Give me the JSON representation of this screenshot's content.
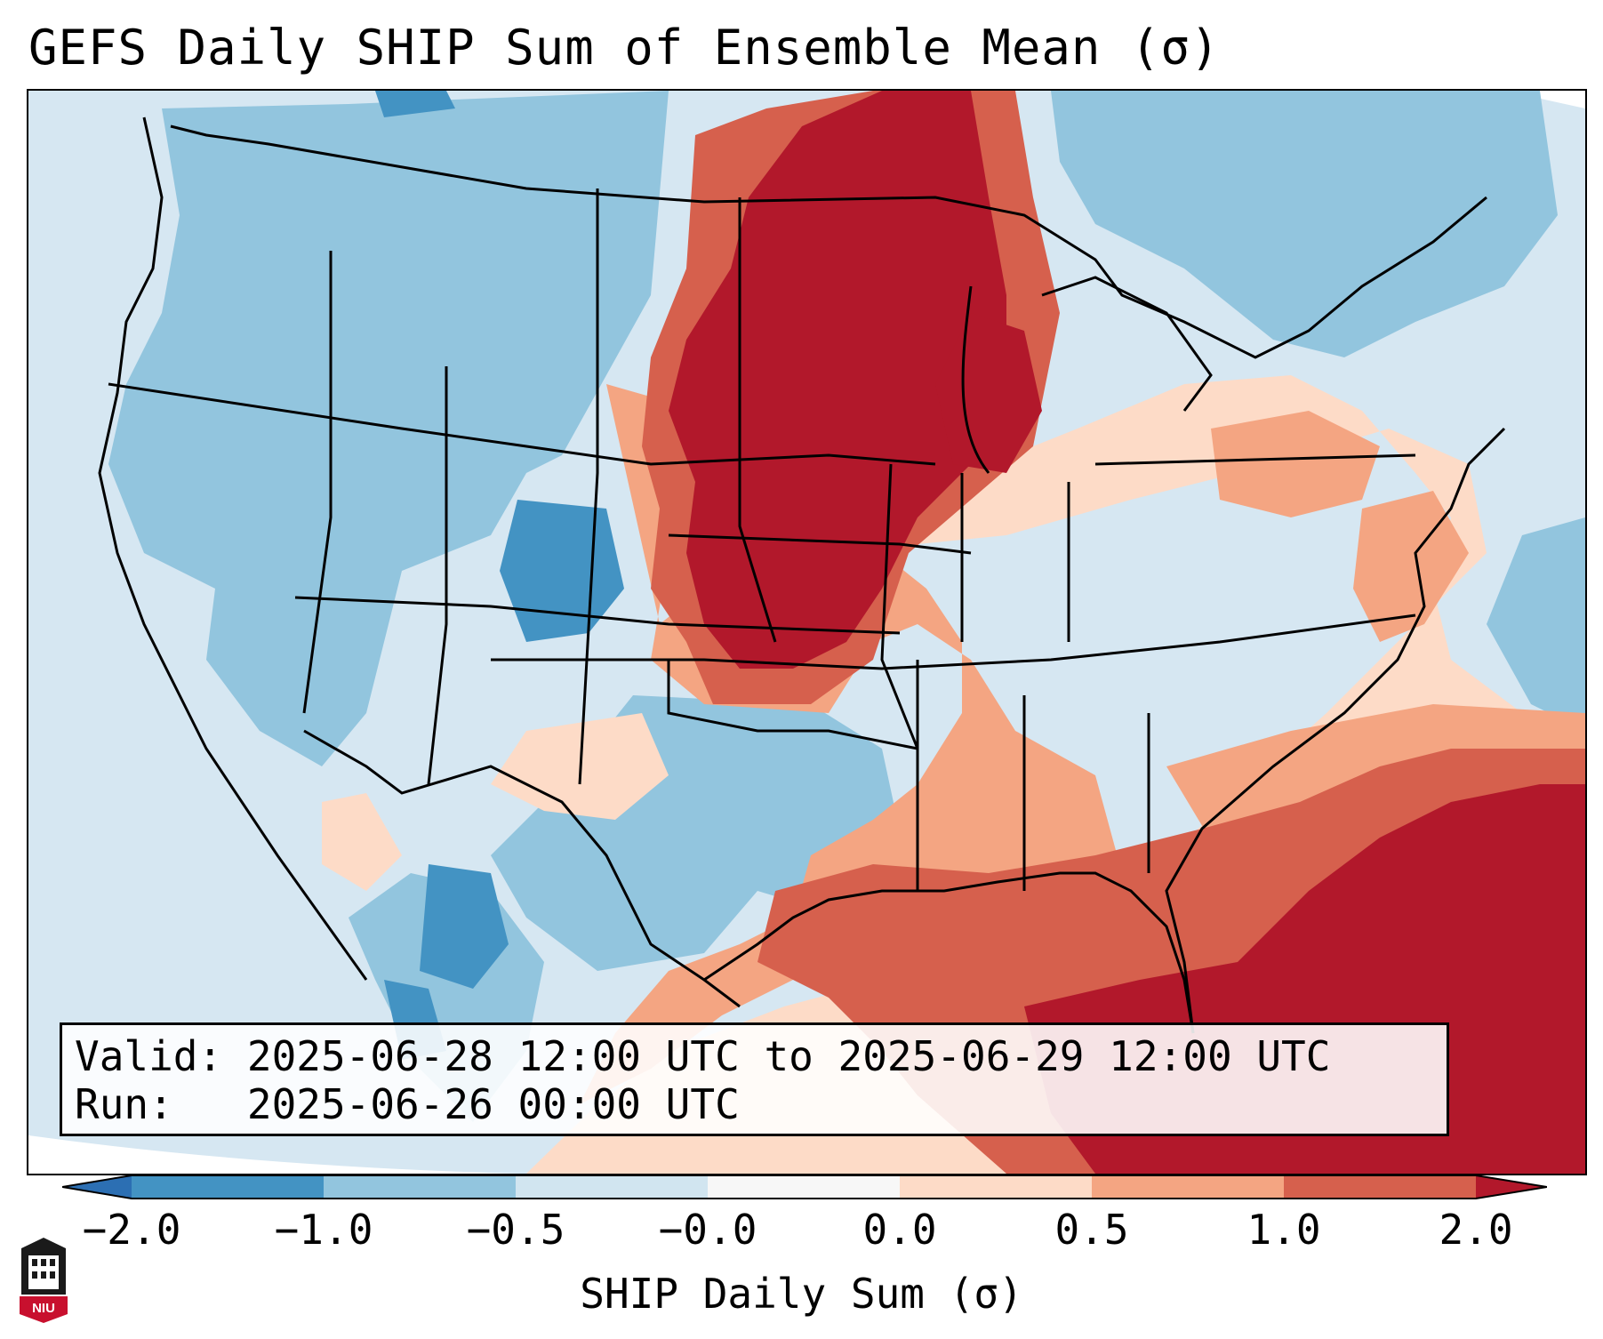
{
  "title": "GEFS Daily SHIP Sum of Ensemble Mean (σ)",
  "info": {
    "valid_label": "Valid:",
    "valid_value": "2025-06-28 12:00 UTC to 2025-06-29 12:00 UTC",
    "run_label": "Run:",
    "run_value": "2025-06-26 00:00 UTC"
  },
  "colorbar": {
    "label": "SHIP Daily Sum (σ)",
    "ticks": [
      "−2.0",
      "−1.0",
      "−0.5",
      "−0.0",
      "0.0",
      "0.5",
      "1.0",
      "2.0"
    ],
    "bins": [
      {
        "range": "< -2.0",
        "color": "#2c6fb3"
      },
      {
        "range": "-2.0 to -1.0",
        "color": "#4393c3"
      },
      {
        "range": "-1.0 to -0.5",
        "color": "#92c5de"
      },
      {
        "range": "-0.5 to -0.0",
        "color": "#d1e5f0"
      },
      {
        "range": "-0.0 to 0.0",
        "color": "#f7f7f7"
      },
      {
        "range": "0.0 to 0.5",
        "color": "#fddbc7"
      },
      {
        "range": "0.5 to 1.0",
        "color": "#f4a582"
      },
      {
        "range": "1.0 to 2.0",
        "color": "#d6604d"
      },
      {
        "range": "> 2.0",
        "color": "#b2182b"
      }
    ]
  },
  "logo_text": "NIU",
  "colors": {
    "strong_pos": "#b2182b",
    "pos": "#d6604d",
    "weak_pos": "#f4a582",
    "slight_pos": "#fddbc7",
    "slight_neg": "#d1e5f0",
    "neg": "#92c5de",
    "strong_neg": "#4393c3"
  }
}
